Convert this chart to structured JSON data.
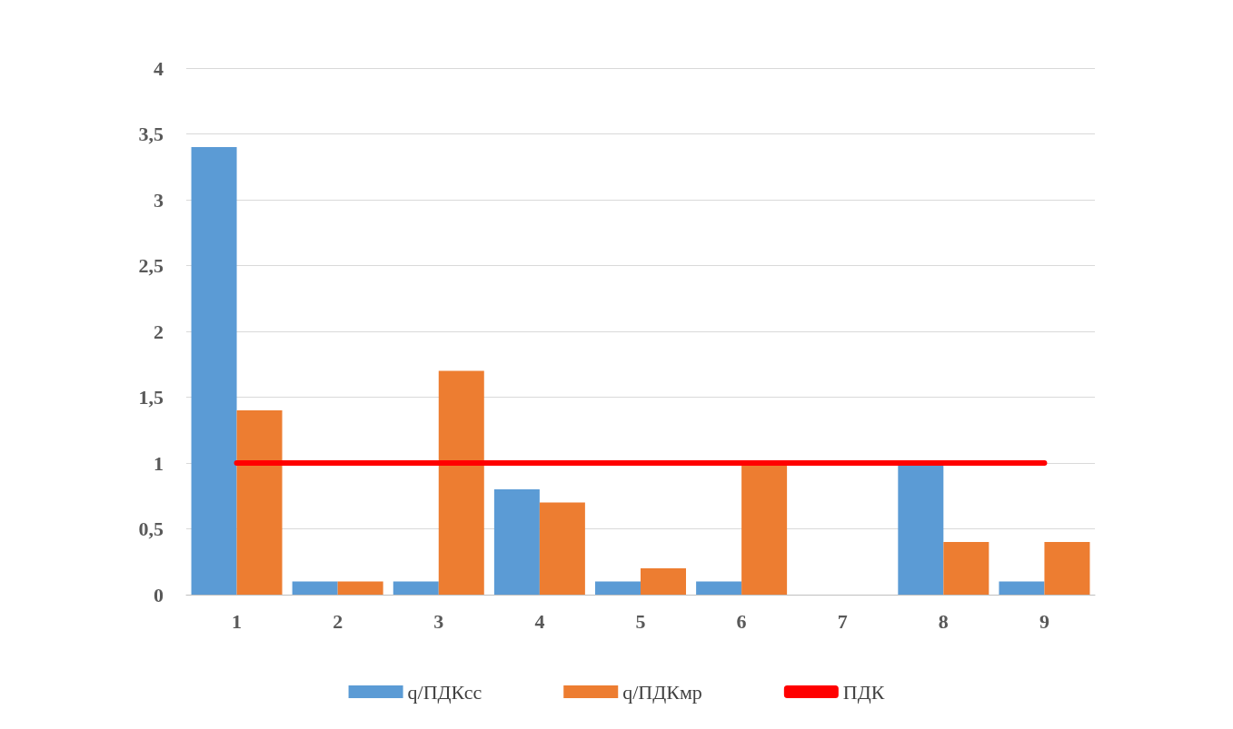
{
  "chart_data": {
    "type": "bar",
    "categories": [
      "1",
      "2",
      "3",
      "4",
      "5",
      "6",
      "7",
      "8",
      "9"
    ],
    "series": [
      {
        "name": "q/ПДКсс",
        "color": "#5b9bd5",
        "values": [
          3.4,
          0.1,
          0.1,
          0.8,
          0.1,
          0.1,
          0,
          1.0,
          0.1
        ]
      },
      {
        "name": "q/ПДКмр",
        "color": "#ed7d31",
        "values": [
          1.4,
          0.1,
          1.7,
          0.7,
          0.2,
          1.0,
          0,
          0.4,
          0.4
        ]
      },
      {
        "name": "ПДК",
        "type": "line",
        "color": "#ff0000",
        "values": [
          1,
          1,
          1,
          1,
          1,
          1,
          1,
          1,
          1
        ],
        "marker": "none",
        "line_style": "solid"
      }
    ],
    "ylim": [
      0,
      4
    ],
    "yticks": [
      0,
      {
        "value": 0.5,
        "label": "0,5"
      },
      1,
      {
        "value": 1.5,
        "label": "1,5"
      },
      2,
      {
        "value": 2.5,
        "label": "2,5"
      },
      3,
      {
        "value": 3.5,
        "label": "3,5"
      },
      4
    ],
    "grid": "y",
    "legend": "bottom"
  }
}
